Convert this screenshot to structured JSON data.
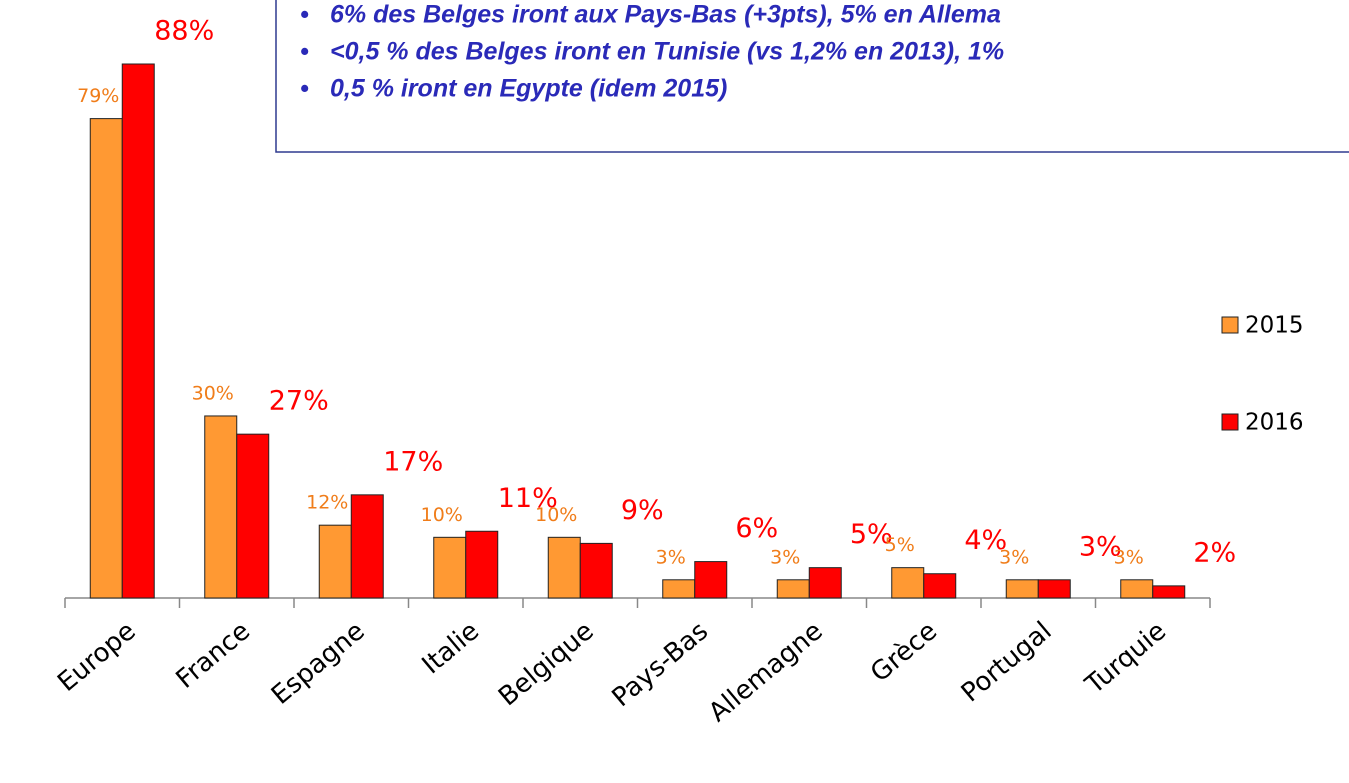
{
  "chart_data": {
    "type": "bar",
    "categories": [
      "Europe",
      "France",
      "Espagne",
      "Italie",
      "Belgique",
      "Pays-Bas",
      "Allemagne",
      "Grèce",
      "Portugal",
      "Turquie"
    ],
    "series": [
      {
        "name": "2015",
        "color": "#ff9933",
        "values": [
          79,
          30,
          12,
          10,
          10,
          3,
          3,
          5,
          3,
          3
        ],
        "value_labels": [
          "79%",
          "30%",
          "12%",
          "10%",
          "10%",
          "3%",
          "3%",
          "5%",
          "3%",
          "3%"
        ]
      },
      {
        "name": "2016",
        "color": "#ff0000",
        "values": [
          88,
          27,
          17,
          11,
          9,
          6,
          5,
          4,
          3,
          2
        ],
        "value_labels": [
          "88%",
          "27%",
          "17%",
          "11%",
          "9%",
          "6%",
          "5%",
          "4%",
          "3%",
          "2%"
        ]
      }
    ],
    "annotations": [
      "6% des Belges iront aux Pays-Bas (+3pts),  5% en Allema",
      "<0,5 % des Belges iront en Tunisie (vs 1,2% en 2013), 1%",
      "0,5 % iront en Egypte (idem 2015)"
    ],
    "legend": "right"
  }
}
